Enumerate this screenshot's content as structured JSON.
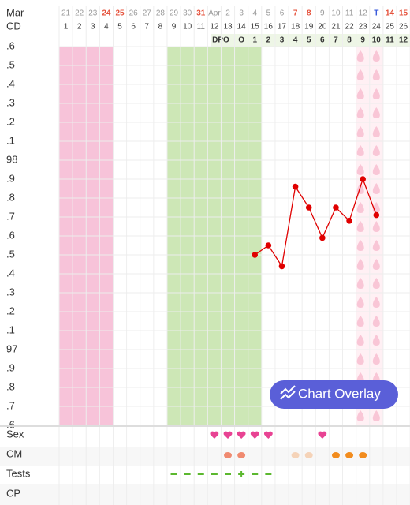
{
  "chart_data": {
    "type": "line",
    "month_label": "Mar",
    "cd_label": "CD",
    "dpo_label": "DPO",
    "categories": [
      "21",
      "22",
      "23",
      "24",
      "25",
      "26",
      "27",
      "28",
      "29",
      "30",
      "31",
      "Apr",
      "2",
      "3",
      "4",
      "5",
      "6",
      "7",
      "8",
      "9",
      "10",
      "11",
      "12",
      "T",
      "14",
      "15"
    ],
    "category_colors": [
      "#999",
      "#999",
      "#999",
      "#e5533d",
      "#e5533d",
      "#999",
      "#999",
      "#999",
      "#999",
      "#999",
      "#e5533d",
      "#999",
      "#999",
      "#999",
      "#999",
      "#999",
      "#999",
      "#e5533d",
      "#e5533d",
      "#999",
      "#999",
      "#999",
      "#999",
      "#3b5bdb",
      "#e5533d",
      "#e5533d"
    ],
    "cd": [
      1,
      2,
      3,
      4,
      5,
      6,
      7,
      8,
      9,
      10,
      11,
      12,
      13,
      14,
      15,
      16,
      17,
      18,
      19,
      20,
      21,
      22,
      23,
      24,
      25,
      26
    ],
    "dpo": [
      null,
      null,
      null,
      null,
      null,
      null,
      null,
      null,
      null,
      null,
      null,
      null,
      null,
      "O",
      1,
      2,
      3,
      4,
      5,
      6,
      7,
      8,
      9,
      10,
      11,
      12
    ],
    "series": [
      {
        "color": "#e00000",
        "values": [
          null,
          null,
          null,
          null,
          null,
          null,
          null,
          null,
          null,
          null,
          null,
          null,
          null,
          null,
          97.5,
          97.55,
          97.44,
          97.86,
          97.75,
          97.59,
          97.75,
          97.68,
          97.9,
          97.71,
          null,
          null
        ]
      }
    ],
    "ylim": [
      96.6,
      98.6
    ],
    "yticks": [
      {
        "value": 96.6,
        "label": ".6"
      },
      {
        "value": 96.7,
        "label": ".7"
      },
      {
        "value": 96.8,
        "label": ".8"
      },
      {
        "value": 96.9,
        "label": ".9"
      },
      97,
      {
        "value": 97.1,
        "label": ".1"
      },
      {
        "value": 97.2,
        "label": ".2"
      },
      {
        "value": 97.3,
        "label": ".3"
      },
      {
        "value": 97.4,
        "label": ".4"
      },
      {
        "value": 97.5,
        "label": ".5"
      },
      {
        "value": 97.6,
        "label": ".6"
      },
      {
        "value": 97.7,
        "label": ".7"
      },
      {
        "value": 97.8,
        "label": ".8"
      },
      {
        "value": 97.9,
        "label": ".9"
      },
      98,
      {
        "value": 98.1,
        "label": ".1"
      },
      {
        "value": 98.2,
        "label": ".2"
      },
      {
        "value": 98.3,
        "label": ".3"
      },
      {
        "value": 98.4,
        "label": ".4"
      },
      {
        "value": 98.5,
        "label": ".5"
      },
      {
        "value": 98.6,
        "label": ".6"
      }
    ],
    "grid": true,
    "row_labels": [
      "Sex",
      "CM",
      "Tests",
      "CP"
    ],
    "button": "Chart Overlay"
  }
}
